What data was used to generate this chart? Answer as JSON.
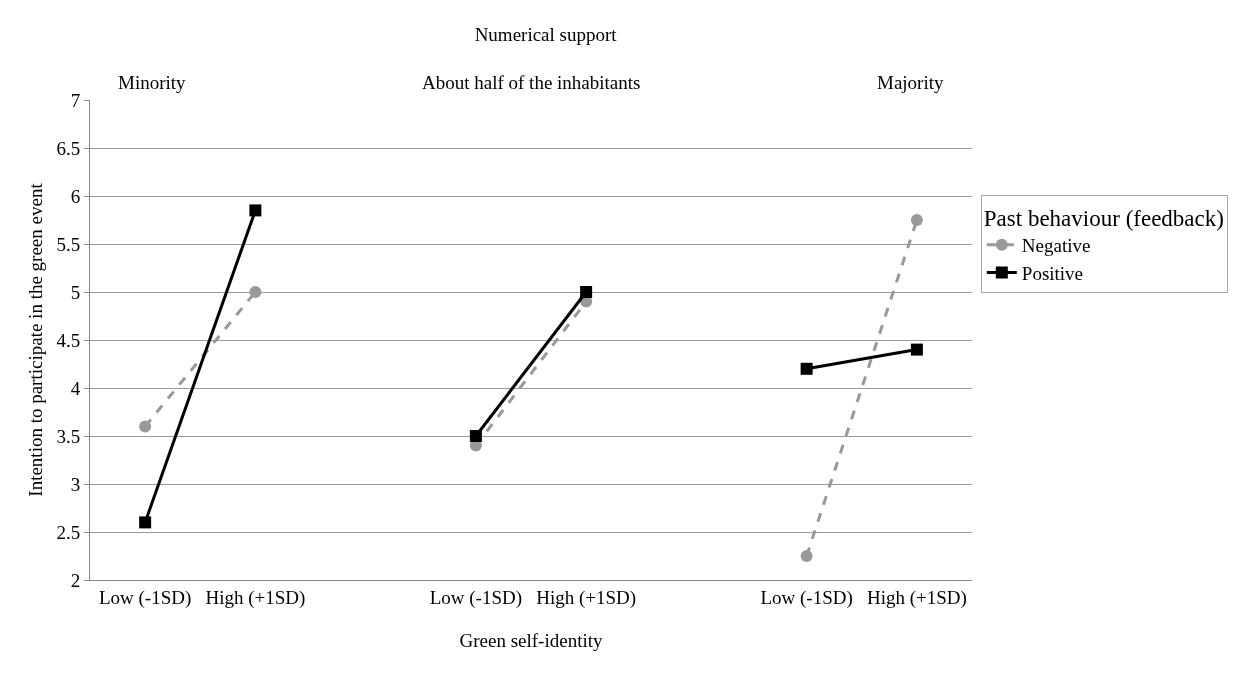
{
  "chart_data": {
    "type": "line",
    "title": "Numerical support",
    "xlabel": "Green self-identity",
    "ylabel": "Intention to participate in the green event",
    "legend_title": "Past behaviour (feedback)",
    "categories": [
      "Low (-1SD)",
      "High (+1SD)",
      null,
      "Low (-1SD)",
      "High (+1SD)",
      null,
      "Low (-1SD)",
      "High (+1SD)"
    ],
    "series": [
      {
        "name": "Negative",
        "color": "#999999",
        "marker": "circle",
        "line_style": "dashed",
        "values": [
          3.6,
          5.0,
          null,
          3.4,
          4.9,
          null,
          2.25,
          5.75
        ]
      },
      {
        "name": "Positive",
        "color": "#000000",
        "marker": "square",
        "line_style": "solid",
        "values": [
          2.6,
          5.85,
          null,
          3.5,
          5.0,
          null,
          4.2,
          4.4
        ]
      }
    ],
    "annotations": [
      "Minority",
      "About half of the inhabitants",
      "Majority"
    ],
    "ylim": [
      2,
      7
    ],
    "yticks": [
      2,
      2.5,
      3,
      3.5,
      4,
      4.5,
      5,
      5.5,
      6,
      6.5,
      7
    ],
    "grid": "y",
    "legend": "right"
  }
}
